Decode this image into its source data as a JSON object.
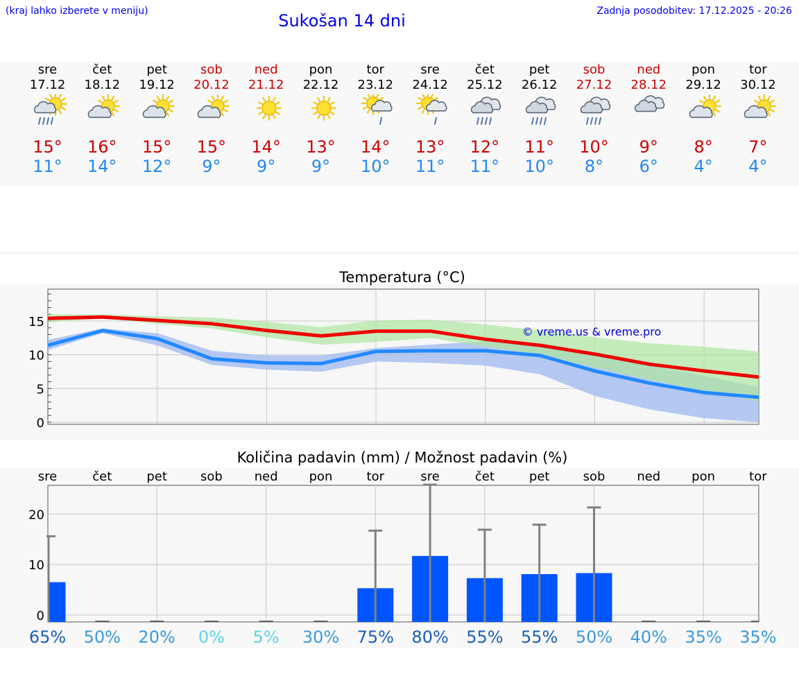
{
  "header": {
    "menu_hint": "(kraj lahko izberete v meniju)",
    "title": "Sukošan 14 dni",
    "updated": "Zadnja posodobitev: 17.12.2025 - 20:26"
  },
  "days": [
    {
      "name": "sre",
      "date": "17.12",
      "weekend": false,
      "icon": "sun-cloud-rain-icon",
      "tmax": "15°",
      "tmin": "11°"
    },
    {
      "name": "čet",
      "date": "18.12",
      "weekend": false,
      "icon": "sun-cloud-icon",
      "tmax": "16°",
      "tmin": "14°"
    },
    {
      "name": "pet",
      "date": "19.12",
      "weekend": false,
      "icon": "sun-cloud-icon",
      "tmax": "15°",
      "tmin": "12°"
    },
    {
      "name": "sob",
      "date": "20.12",
      "weekend": true,
      "icon": "sun-cloud-icon",
      "tmax": "15°",
      "tmin": "9°"
    },
    {
      "name": "ned",
      "date": "21.12",
      "weekend": true,
      "icon": "sun-icon",
      "tmax": "14°",
      "tmin": "9°"
    },
    {
      "name": "pon",
      "date": "22.12",
      "weekend": false,
      "icon": "sun-icon",
      "tmax": "13°",
      "tmin": "9°"
    },
    {
      "name": "tor",
      "date": "23.12",
      "weekend": false,
      "icon": "sun-cloud-showers-icon",
      "tmax": "14°",
      "tmin": "10°"
    },
    {
      "name": "sre",
      "date": "24.12",
      "weekend": false,
      "icon": "sun-cloud-showers-icon",
      "tmax": "13°",
      "tmin": "11°"
    },
    {
      "name": "čet",
      "date": "25.12",
      "weekend": false,
      "icon": "cloud-rain-icon",
      "tmax": "12°",
      "tmin": "11°"
    },
    {
      "name": "pet",
      "date": "26.12",
      "weekend": false,
      "icon": "cloud-rain-icon",
      "tmax": "11°",
      "tmin": "10°"
    },
    {
      "name": "sob",
      "date": "27.12",
      "weekend": true,
      "icon": "cloud-rain-icon",
      "tmax": "10°",
      "tmin": "8°"
    },
    {
      "name": "ned",
      "date": "28.12",
      "weekend": true,
      "icon": "cloud-icon",
      "tmax": "9°",
      "tmin": "6°"
    },
    {
      "name": "pon",
      "date": "29.12",
      "weekend": false,
      "icon": "sun-cloud-icon",
      "tmax": "8°",
      "tmin": "4°"
    },
    {
      "name": "tor",
      "date": "30.12",
      "weekend": false,
      "icon": "sun-cloud-icon",
      "tmax": "7°",
      "tmin": "4°"
    }
  ],
  "colors": {
    "tmax_line": "#ee0000",
    "tmin_line": "#2288ff",
    "tmax_band": "#aee5a0",
    "tmin_band": "#a8c0f0",
    "overlap_band": "#7fbfa0",
    "bar": "#0055ff",
    "whisker": "#808080",
    "weekend": "#cc0000",
    "link": "#0000ee"
  },
  "chart_data": [
    {
      "type": "line",
      "title": "Temperatura (°C)",
      "watermark": "© vreme.us & vreme.pro",
      "x": [
        0,
        1,
        2,
        3,
        4,
        5,
        6,
        7,
        8,
        9,
        10,
        11,
        12,
        13
      ],
      "ylim": [
        0,
        20
      ],
      "yticks": [
        0,
        5,
        10,
        15
      ],
      "series": [
        {
          "name": "max",
          "values": [
            15.4,
            15.6,
            15.1,
            14.6,
            13.6,
            12.8,
            13.5,
            13.5,
            12.3,
            11.4,
            10.1,
            8.6,
            7.6,
            6.7
          ]
        },
        {
          "name": "min",
          "values": [
            11.4,
            13.6,
            12.4,
            9.4,
            8.8,
            8.7,
            10.5,
            10.6,
            10.6,
            9.9,
            7.6,
            5.8,
            4.4,
            3.7
          ]
        }
      ],
      "bands": [
        {
          "name": "max_range",
          "upper": [
            16.0,
            16.0,
            15.7,
            15.5,
            14.9,
            14.1,
            15.1,
            15.2,
            14.5,
            13.6,
            12.6,
            11.7,
            11.2,
            10.5
          ],
          "lower": [
            14.8,
            15.4,
            14.6,
            13.9,
            12.6,
            11.5,
            11.9,
            12.5,
            11.2,
            10.0,
            8.1,
            6.3,
            4.6,
            3.1
          ]
        },
        {
          "name": "min_range",
          "upper": [
            12.2,
            13.9,
            13.2,
            10.6,
            9.9,
            9.9,
            11.0,
            11.5,
            12.0,
            11.6,
            10.3,
            8.4,
            6.9,
            5.2
          ]
        },
        {
          "name": "min_range_lower",
          "upper": [
            10.7,
            13.2,
            11.4,
            8.5,
            7.8,
            7.5,
            9.0,
            8.8,
            8.4,
            7.1,
            3.9,
            1.9,
            0.6,
            0.0
          ]
        }
      ]
    },
    {
      "type": "bar",
      "title": "Količina padavin (mm) / Možnost padavin (%)",
      "categories": [
        "sre",
        "čet",
        "pet",
        "sob",
        "ned",
        "pon",
        "tor",
        "sre",
        "čet",
        "pet",
        "sob",
        "ned",
        "pon",
        "tor"
      ],
      "values": [
        6.5,
        0,
        0,
        0,
        0,
        0,
        5.3,
        11.7,
        7.3,
        8.1,
        8.3,
        0,
        0,
        0
      ],
      "whisker_max": [
        15.6,
        0,
        0,
        0,
        0,
        0,
        16.7,
        25.8,
        16.9,
        17.9,
        21.3,
        0,
        0,
        0
      ],
      "probability": [
        "65%",
        "50%",
        "20%",
        "0%",
        "5%",
        "30%",
        "75%",
        "80%",
        "55%",
        "55%",
        "50%",
        "40%",
        "35%",
        "35%"
      ],
      "prob_values": [
        65,
        50,
        20,
        0,
        5,
        30,
        75,
        80,
        55,
        55,
        50,
        40,
        35,
        35
      ],
      "ylim": [
        -2,
        27
      ],
      "yticks": [
        0,
        10,
        20
      ]
    }
  ]
}
